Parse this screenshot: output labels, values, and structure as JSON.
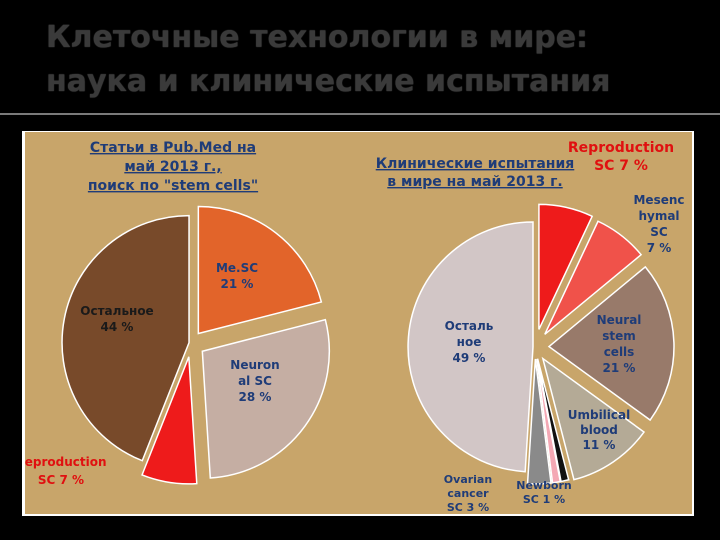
{
  "slide": {
    "title_line1": "Клеточные технологии в мире:",
    "title_line2": "наука и клинические испытания"
  },
  "colors": {
    "background": "#c8a56a",
    "title_text": "#3a3a3a",
    "label_blue": "#1f3c78",
    "label_red": "#e01010",
    "label_dark": "#1a1a1a"
  },
  "chart_data": [
    {
      "type": "pie",
      "title_lines": [
        "Статьи в Pub.Med  на",
        "май 2013 г.,",
        "поиск по \"stem cells\""
      ],
      "slices": [
        {
          "name": "Me.SC",
          "value": 21,
          "value_label": "21 %",
          "color": "#e2642a",
          "label_color": "#1f3c78"
        },
        {
          "name": "Neuronal SC",
          "value": 28,
          "value_label": "28 %",
          "color": "#c5aea3",
          "label_color": "#1f3c78"
        },
        {
          "name": "Reproduction SC",
          "value": 7,
          "value_label": "7 %",
          "color": "#ee1b1b",
          "label_color": "#e01010"
        },
        {
          "name": "Остальное",
          "value": 44,
          "value_label": "44 %",
          "color": "#784a2a",
          "label_color": "#1a1a1a"
        }
      ],
      "label_lines": {
        "Me.SC": [
          "Me.SC",
          "21 %"
        ],
        "Neuronal SC": [
          "Neuron",
          "al SC",
          "28 %"
        ],
        "Reproduction SC": [
          "Reproduction",
          "SC 7 %"
        ],
        "Остальное": [
          "Остальное",
          "44 %"
        ]
      }
    },
    {
      "type": "pie",
      "title_lines": [
        "Клинические испытания",
        "в мире на май 2013 г."
      ],
      "slices": [
        {
          "name": "Reproduction SC",
          "value": 7,
          "value_label": "7 %",
          "color": "#ee1b1b",
          "label_color": "#e01010"
        },
        {
          "name": "Mesenchymal SC",
          "value": 7,
          "value_label": "7 %",
          "color": "#f0524a",
          "label_color": "#1f3c78"
        },
        {
          "name": "Neural stem cells",
          "value": 21,
          "value_label": "21 %",
          "color": "#987a6a",
          "label_color": "#1f3c78"
        },
        {
          "name": "Umbilical blood",
          "value": 11,
          "value_label": "11 %",
          "color": "#b4aa96",
          "label_color": "#1f3c78"
        },
        {
          "name": "Newborn SC",
          "value": 1,
          "value_label": "1 %",
          "color": "#111111",
          "label_color": "#1f3c78"
        },
        {
          "name": "Pink",
          "value": 1,
          "value_label": "",
          "color": "#f4a8b4",
          "label_color": "#1f3c78"
        },
        {
          "name": "Ovarian cancer SC",
          "value": 3,
          "value_label": "3 %",
          "color": "#8a8a8a",
          "label_color": "#1f3c78"
        },
        {
          "name": "Остальное",
          "value": 49,
          "value_label": "49 %",
          "color": "#d2c6c6",
          "label_color": "#1f3c78"
        }
      ],
      "label_lines": {
        "Reproduction SC": [
          "Reproduction",
          "SC 7 %"
        ],
        "Mesenchymal SC": [
          "Mesenc",
          "hymal",
          "SC",
          "7 %"
        ],
        "Neural stem cells": [
          "Neural",
          "stem",
          "cells",
          "21 %"
        ],
        "Umbilical blood": [
          "Umbilical",
          "blood",
          "11 %"
        ],
        "Newborn SC": [
          "Newborn",
          "SC 1 %"
        ],
        "Ovarian cancer SC": [
          "Ovarian",
          "cancer",
          "SC 3 %"
        ],
        "Остальное": [
          "Осталь",
          "ное",
          "49 %"
        ]
      }
    }
  ]
}
